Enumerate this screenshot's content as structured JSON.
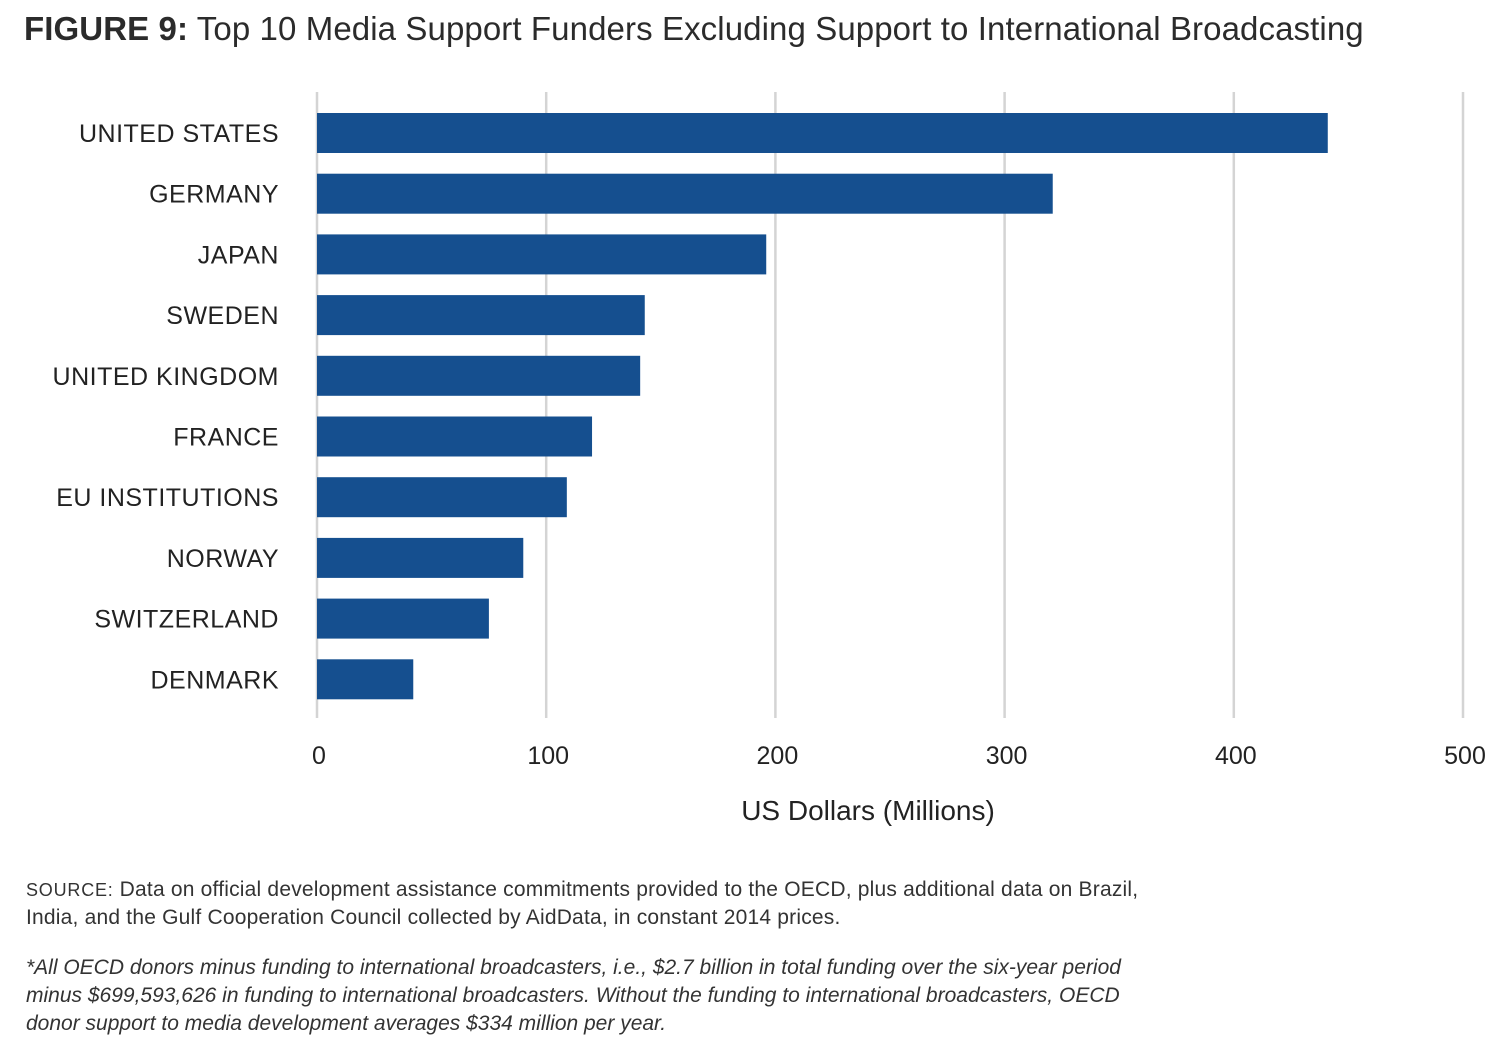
{
  "title_label": "FIGURE 9:",
  "title_text": "Top 10 Media Support Funders Excluding Support to International Broadcasting",
  "source_label": "SOURCE:",
  "source_text": "Data on official development assistance commitments provided to the OECD, plus additional data on Brazil, India, and the Gulf Cooperation Council collected by AidData, in constant 2014 prices.",
  "footnote": "*All OECD donors minus funding to international broadcasters, i.e., $2.7 billion in total funding over the six-year period minus $699,593,626 in funding to international broadcasters. Without the funding to international broadcasters, OECD donor support to media development averages $334 million per year.",
  "chart_data": {
    "type": "bar",
    "orientation": "horizontal",
    "categories": [
      "UNITED STATES",
      "GERMANY",
      "JAPAN",
      "SWEDEN",
      "UNITED KINGDOM",
      "FRANCE",
      "EU INSTITUTIONS",
      "NORWAY",
      "SWITZERLAND",
      "DENMARK"
    ],
    "values": [
      441,
      321,
      196,
      143,
      141,
      120,
      109,
      90,
      75,
      42
    ],
    "xlabel": "US Dollars (Millions)",
    "xlim": [
      0,
      500
    ],
    "xticks": [
      0,
      100,
      200,
      300,
      400,
      500
    ],
    "grid": "vertical",
    "bar_color": "#154f8f",
    "grid_color": "#d4d4d4"
  }
}
